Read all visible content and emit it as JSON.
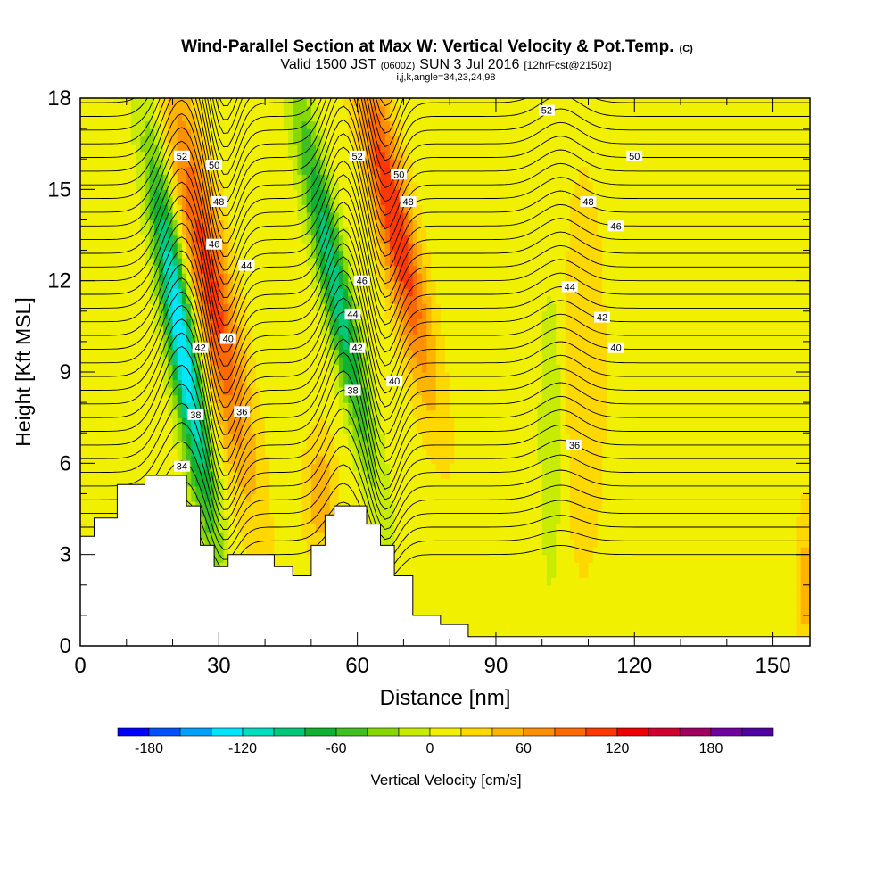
{
  "chart_data": {
    "type": "heatmap",
    "title": "Wind-Parallel Section at Max W: Vertical Velocity & Pot.Temp.",
    "title_mark": "(C)",
    "subtitle_prefix": "Valid 1500 JST",
    "subtitle_utc": "(0600Z)",
    "subtitle_date": "SUN 3 Jul 2016",
    "subtitle_run": "[12hrFcst@2150z]",
    "subtitle_indices": "i,j,k,angle=34,23,24,98",
    "xlabel": "Distance [nm]",
    "ylabel": "Height [Kft MSL]",
    "xlim": [
      0,
      158
    ],
    "ylim": [
      0,
      18
    ],
    "x_ticks": [
      0,
      30,
      60,
      90,
      120,
      150
    ],
    "y_ticks": [
      0,
      3,
      6,
      9,
      12,
      15,
      18
    ],
    "x_tick_labels": [
      "0",
      "30",
      "60",
      "90",
      "120",
      "150"
    ],
    "y_tick_labels": [
      "0",
      "3",
      "6",
      "9",
      "12",
      "15",
      "18"
    ],
    "colorbar": {
      "label": "Vertical Velocity [cm/s]",
      "min": -200,
      "max": 220,
      "step": 20,
      "tick_values": [
        -180,
        -120,
        -60,
        0,
        60,
        120,
        180
      ],
      "tick_labels": [
        "-180",
        "-120",
        "-60",
        "0",
        "60",
        "120",
        "180"
      ],
      "colors": [
        "#0000ff",
        "#0050ff",
        "#00a0ff",
        "#00e6ff",
        "#00dcc0",
        "#00c878",
        "#10b030",
        "#40c020",
        "#88d800",
        "#c8ec00",
        "#f0f000",
        "#ffd800",
        "#ffb400",
        "#ff9000",
        "#ff6a00",
        "#ff3800",
        "#f00000",
        "#d00030",
        "#a00060",
        "#7000a0",
        "#5000a0"
      ]
    },
    "background_field_cm_s": 10,
    "updrafts_cm_s": [
      {
        "x": 28,
        "y": 12,
        "peak": 100
      },
      {
        "x": 68,
        "y": 14,
        "peak": 110
      },
      {
        "x": 52,
        "y": 5,
        "peak": 45
      },
      {
        "x": 109,
        "y": 9,
        "peak": 25
      },
      {
        "x": 157,
        "y": 2,
        "peak": 40
      }
    ],
    "downdrafts_cm_s": [
      {
        "x": 22,
        "y": 10,
        "peak": -150
      },
      {
        "x": 55,
        "y": 12,
        "peak": -105
      },
      {
        "x": 102,
        "y": 7,
        "peak": -30
      }
    ],
    "terrain_kft": [
      [
        0,
        3.6
      ],
      [
        3,
        4.2
      ],
      [
        8,
        5.3
      ],
      [
        14,
        5.6
      ],
      [
        20,
        5.6
      ],
      [
        23,
        4.6
      ],
      [
        26,
        3.3
      ],
      [
        29,
        2.6
      ],
      [
        32,
        3.0
      ],
      [
        38,
        3.0
      ],
      [
        42,
        2.6
      ],
      [
        46,
        2.3
      ],
      [
        50,
        3.3
      ],
      [
        53,
        4.3
      ],
      [
        55,
        4.6
      ],
      [
        59,
        4.6
      ],
      [
        62,
        4.0
      ],
      [
        65,
        3.3
      ],
      [
        68,
        2.3
      ],
      [
        72,
        1.0
      ],
      [
        78,
        0.7
      ],
      [
        84,
        0.3
      ],
      [
        100,
        0.3
      ],
      [
        130,
        0.3
      ],
      [
        158,
        0.3
      ]
    ],
    "isentropes": [
      {
        "theta": 34,
        "label": "34",
        "label_x": 22,
        "label_y": 5.9
      },
      {
        "theta": 36,
        "label": "36",
        "label_x": 35,
        "label_y": 7.7
      },
      {
        "theta": 36,
        "label": "36",
        "label_x": 107,
        "label_y": 6.6
      },
      {
        "theta": 38,
        "label": "38",
        "label_x": 25,
        "label_y": 7.6
      },
      {
        "theta": 38,
        "label": "38",
        "label_x": 59,
        "label_y": 8.4
      },
      {
        "theta": 40,
        "label": "40",
        "label_x": 32,
        "label_y": 10.1
      },
      {
        "theta": 40,
        "label": "40",
        "label_x": 68,
        "label_y": 8.7
      },
      {
        "theta": 40,
        "label": "40",
        "label_x": 116,
        "label_y": 9.8
      },
      {
        "theta": 42,
        "label": "42",
        "label_x": 26,
        "label_y": 9.8
      },
      {
        "theta": 42,
        "label": "42",
        "label_x": 60,
        "label_y": 9.8
      },
      {
        "theta": 42,
        "label": "42",
        "label_x": 113,
        "label_y": 10.8
      },
      {
        "theta": 44,
        "label": "44",
        "label_x": 36,
        "label_y": 12.5
      },
      {
        "theta": 44,
        "label": "44",
        "label_x": 59,
        "label_y": 10.9
      },
      {
        "theta": 44,
        "label": "44",
        "label_x": 106,
        "label_y": 11.8
      },
      {
        "theta": 46,
        "label": "46",
        "label_x": 29,
        "label_y": 13.2
      },
      {
        "theta": 46,
        "label": "46",
        "label_x": 61,
        "label_y": 12.0
      },
      {
        "theta": 46,
        "label": "46",
        "label_x": 116,
        "label_y": 13.8
      },
      {
        "theta": 48,
        "label": "48",
        "label_x": 30,
        "label_y": 14.6
      },
      {
        "theta": 48,
        "label": "48",
        "label_x": 71,
        "label_y": 14.6
      },
      {
        "theta": 48,
        "label": "48",
        "label_x": 110,
        "label_y": 14.6
      },
      {
        "theta": 50,
        "label": "50",
        "label_x": 29,
        "label_y": 15.8
      },
      {
        "theta": 50,
        "label": "50",
        "label_x": 69,
        "label_y": 15.5
      },
      {
        "theta": 50,
        "label": "50",
        "label_x": 120,
        "label_y": 16.1
      },
      {
        "theta": 52,
        "label": "52",
        "label_x": 22,
        "label_y": 16.1
      },
      {
        "theta": 52,
        "label": "52",
        "label_x": 60,
        "label_y": 16.1
      },
      {
        "theta": 52,
        "label": "52",
        "label_x": 101,
        "label_y": 17.6
      }
    ]
  }
}
